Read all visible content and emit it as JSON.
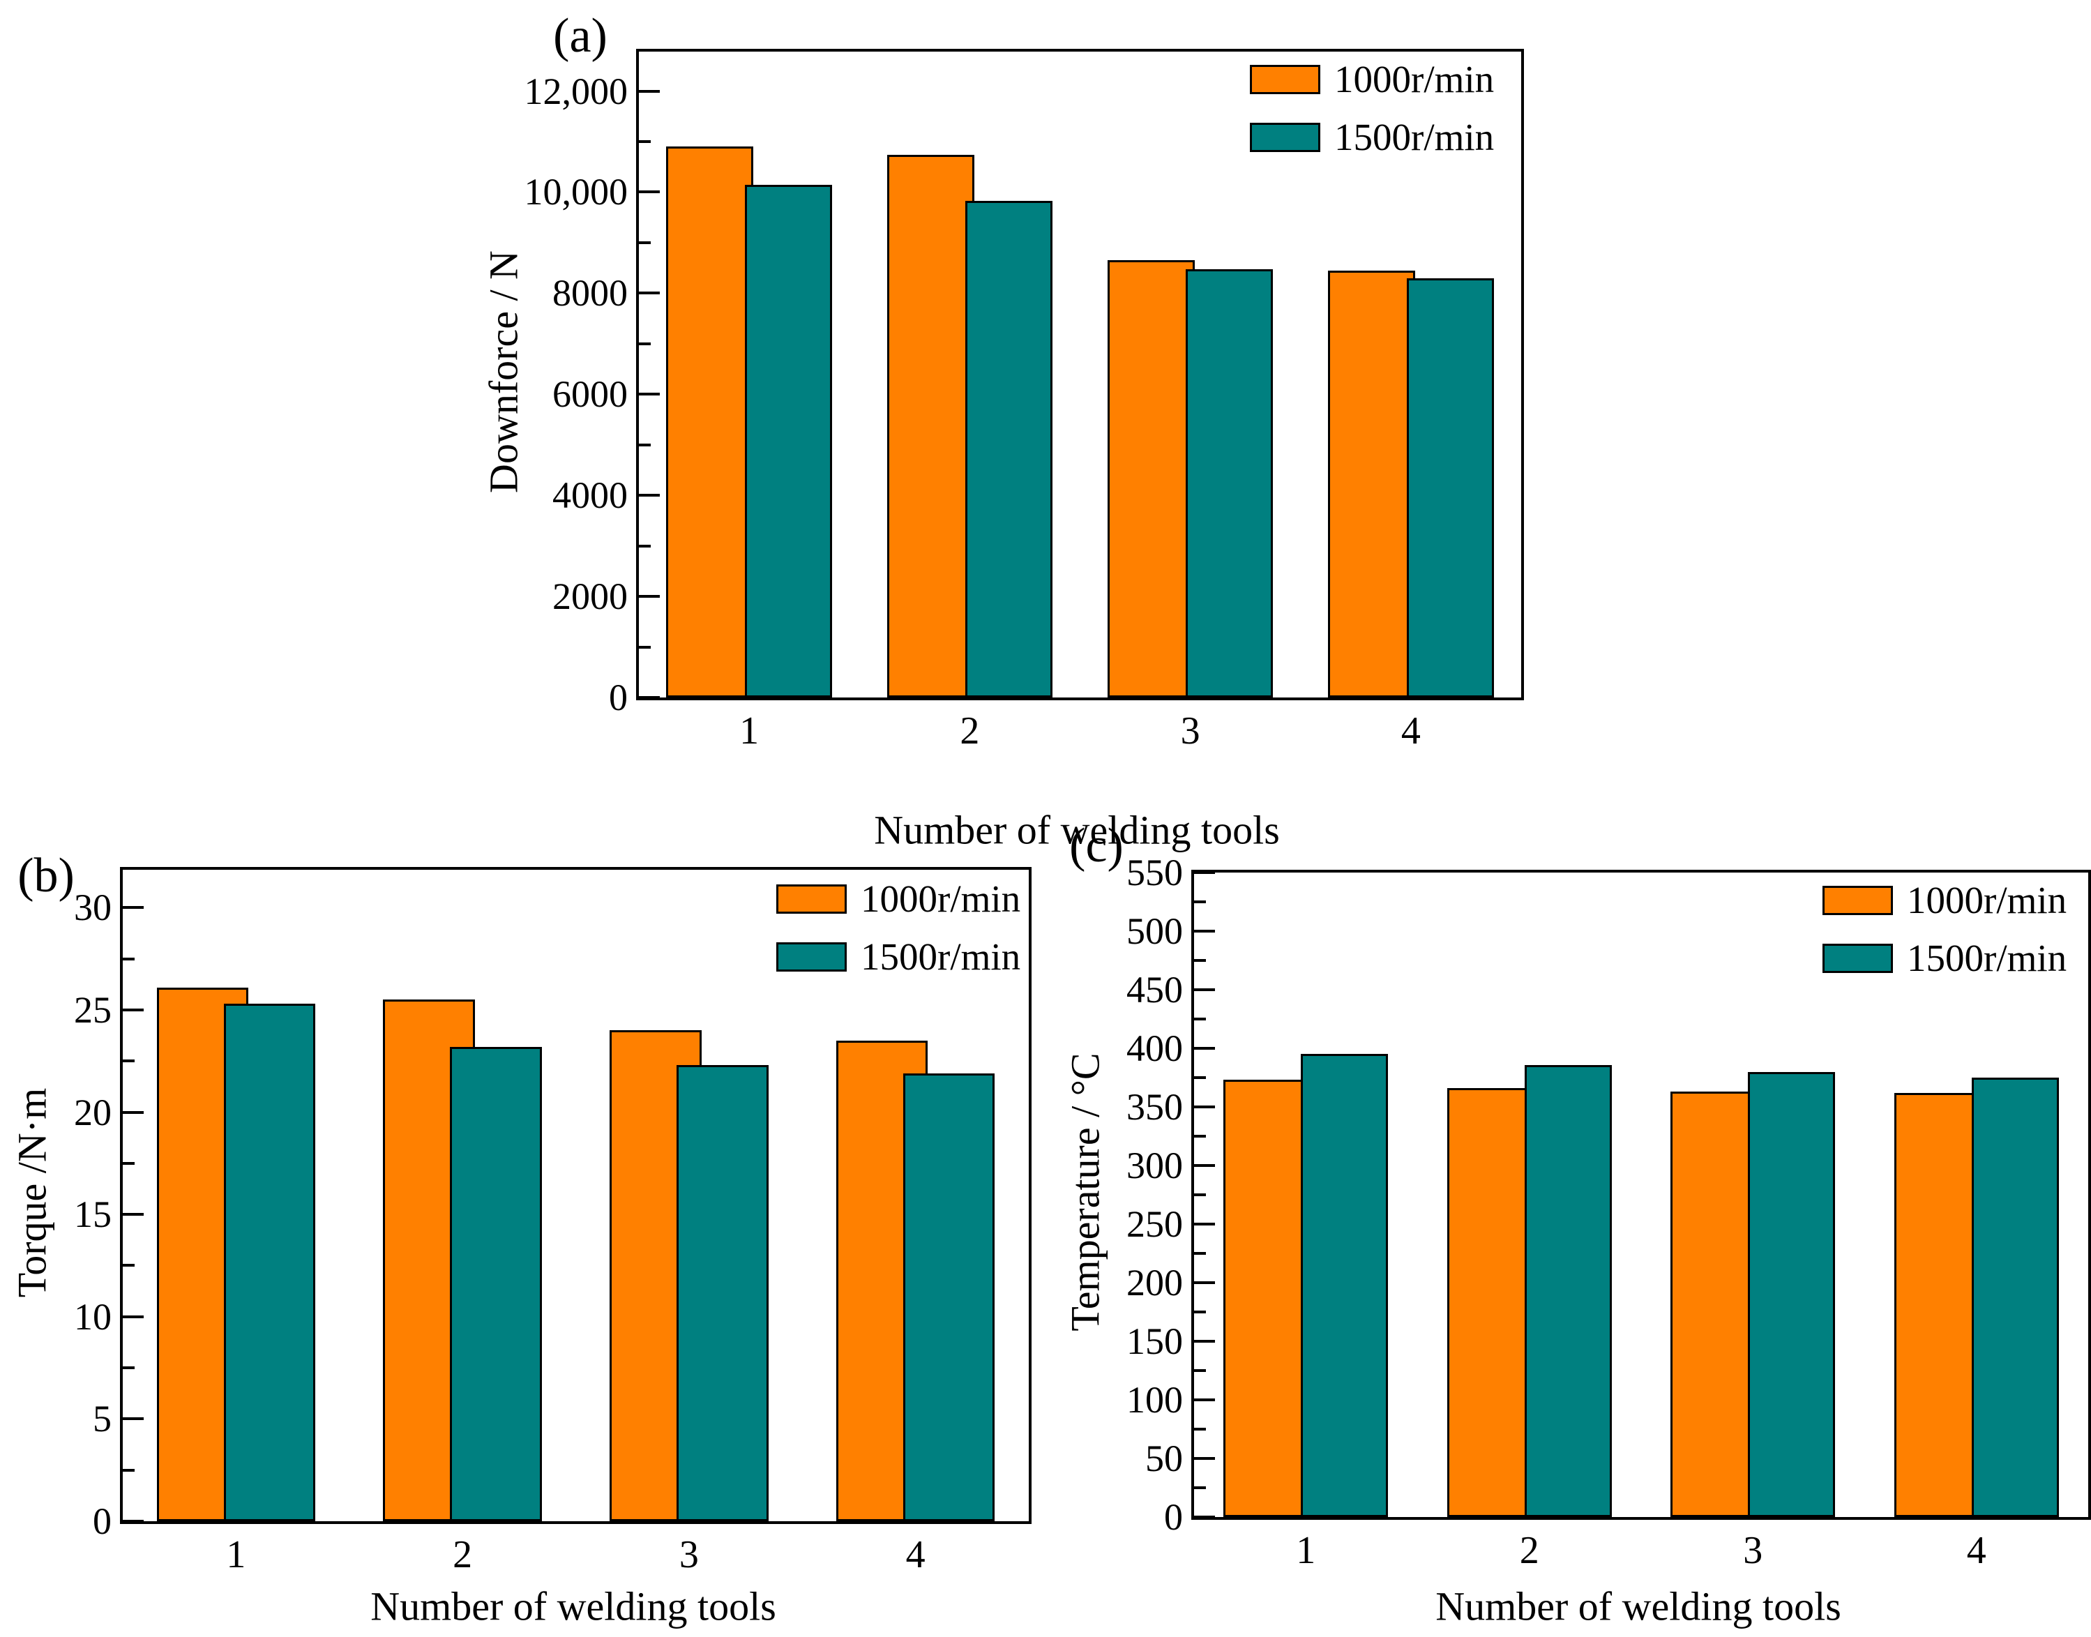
{
  "figure": {
    "background_color": "#ffffff",
    "series_colors": {
      "orange": "#FF8000",
      "teal": "#008080"
    }
  },
  "chart_data": [
    {
      "type": "bar",
      "panel_label": "(a)",
      "xlabel": "Number of welding tools",
      "ylabel": "Downforce / N",
      "categories": [
        "1",
        "2",
        "3",
        "4"
      ],
      "series": [
        {
          "name": "1000r/min",
          "color": "#FF8000",
          "values": [
            10900,
            10740,
            8660,
            8450
          ]
        },
        {
          "name": "1500r/min",
          "color": "#008080",
          "values": [
            10140,
            9820,
            8470,
            8300
          ]
        }
      ],
      "ylim": [
        0,
        12780
      ],
      "y_ticks": [
        {
          "v": 0,
          "label": "0"
        },
        {
          "v": 2000,
          "label": "2000"
        },
        {
          "v": 4000,
          "label": "4000"
        },
        {
          "v": 6000,
          "label": "6000"
        },
        {
          "v": 8000,
          "label": "8000"
        },
        {
          "v": 10000,
          "label": "10,000"
        },
        {
          "v": 12000,
          "label": "12,000"
        }
      ],
      "y_minor": [
        1000,
        3000,
        5000,
        7000,
        9000,
        11000
      ],
      "legend_position": "top-right",
      "grid": false
    },
    {
      "type": "bar",
      "panel_label": "(b)",
      "xlabel": "Number of welding tools",
      "ylabel": "Torque /N·m",
      "categories": [
        "1",
        "2",
        "3",
        "4"
      ],
      "series": [
        {
          "name": "1000r/min",
          "color": "#FF8000",
          "values": [
            26.1,
            25.5,
            24.0,
            23.5
          ]
        },
        {
          "name": "1500r/min",
          "color": "#008080",
          "values": [
            25.3,
            23.2,
            22.3,
            21.9
          ]
        }
      ],
      "ylim": [
        0,
        31.85
      ],
      "y_ticks": [
        {
          "v": 0,
          "label": "0"
        },
        {
          "v": 5,
          "label": "5"
        },
        {
          "v": 10,
          "label": "10"
        },
        {
          "v": 15,
          "label": "15"
        },
        {
          "v": 20,
          "label": "20"
        },
        {
          "v": 25,
          "label": "25"
        },
        {
          "v": 30,
          "label": "30"
        }
      ],
      "y_minor": [
        2.5,
        7.5,
        12.5,
        17.5,
        22.5,
        27.5
      ],
      "legend_position": "top-right",
      "grid": false
    },
    {
      "type": "bar",
      "panel_label": "(c)",
      "xlabel": "Number of welding tools",
      "ylabel": "Temperature / °C",
      "categories": [
        "1",
        "2",
        "3",
        "4"
      ],
      "series": [
        {
          "name": "1000r/min",
          "color": "#FF8000",
          "values": [
            373,
            366,
            363,
            362
          ]
        },
        {
          "name": "1500r/min",
          "color": "#008080",
          "values": [
            395,
            386,
            380,
            375
          ]
        }
      ],
      "ylim": [
        0,
        550
      ],
      "y_ticks": [
        {
          "v": 0,
          "label": "0"
        },
        {
          "v": 50,
          "label": "50"
        },
        {
          "v": 100,
          "label": "100"
        },
        {
          "v": 150,
          "label": "150"
        },
        {
          "v": 200,
          "label": "200"
        },
        {
          "v": 250,
          "label": "250"
        },
        {
          "v": 300,
          "label": "300"
        },
        {
          "v": 350,
          "label": "350"
        },
        {
          "v": 400,
          "label": "400"
        },
        {
          "v": 450,
          "label": "450"
        },
        {
          "v": 500,
          "label": "500"
        },
        {
          "v": 550,
          "label": "550"
        }
      ],
      "y_minor": [
        25,
        75,
        125,
        175,
        225,
        275,
        325,
        375,
        425,
        475,
        525
      ],
      "legend_position": "top-right",
      "grid": false
    }
  ]
}
